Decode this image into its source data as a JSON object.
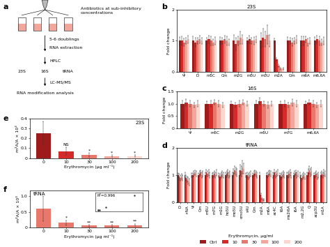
{
  "diagram": {
    "panel": "a",
    "treatment": "Antibiotics at sub-inhibitory\nconcentrations",
    "steps": [
      "5-6 doublings",
      "RNA extraction",
      "HPLC"
    ],
    "fractions": [
      "23S",
      "16S",
      "tRNA"
    ],
    "method": "LC-MS/MS",
    "result": "RNA modification analysis"
  },
  "chart_data": [
    {
      "panel": "b",
      "type": "bar",
      "title": "23S",
      "ylabel": "Fold change",
      "categories": [
        "Ψ",
        "D",
        "m5C",
        "Cm",
        "m2G",
        "m5U",
        "m3U",
        "m2A",
        "Gm",
        "m6A",
        "m6,6A"
      ],
      "ylim": [
        0,
        2
      ],
      "yticks": [
        0,
        1,
        2
      ],
      "series": [
        {
          "name": "Ctrl",
          "color": "#9e1b1b",
          "values": [
            1,
            1,
            1,
            1,
            1,
            1,
            1,
            1,
            1,
            1,
            1
          ],
          "errors": [
            0.12,
            0.15,
            0.1,
            0.12,
            0.2,
            0.1,
            0.25,
            0.08,
            0.12,
            0.15,
            0.12
          ]
        },
        {
          "name": "10",
          "color": "#d42a2a",
          "values": [
            1.0,
            0.95,
            1.05,
            1.0,
            0.9,
            1.05,
            1.1,
            0.4,
            1.0,
            1.0,
            1.05
          ],
          "errors": [
            0.15,
            0.15,
            0.12,
            0.1,
            0.2,
            0.12,
            0.3,
            0.05,
            0.1,
            0.15,
            0.12
          ]
        },
        {
          "name": "30",
          "color": "#e8776c",
          "values": [
            0.95,
            1.0,
            1.0,
            1.05,
            1.0,
            1.0,
            1.05,
            0.2,
            0.95,
            1.05,
            1.0
          ],
          "errors": [
            0.12,
            0.1,
            0.15,
            0.12,
            0.15,
            0.1,
            0.25,
            0.04,
            0.12,
            0.1,
            0.15
          ]
        },
        {
          "name": "100",
          "color": "#f2a79d",
          "values": [
            1.0,
            1.05,
            0.95,
            1.0,
            1.1,
            1.0,
            1.2,
            0.1,
            1.0,
            0.95,
            0.95
          ],
          "errors": [
            0.1,
            0.12,
            0.1,
            0.15,
            0.2,
            0.12,
            0.3,
            0.03,
            0.1,
            0.12,
            0.1
          ]
        },
        {
          "name": "200",
          "color": "#fad6cf",
          "values": [
            1.05,
            1.0,
            1.0,
            0.95,
            1.05,
            1.05,
            1.0,
            0.1,
            1.05,
            1.0,
            1.0
          ],
          "errors": [
            0.12,
            0.1,
            0.12,
            0.1,
            0.15,
            0.1,
            0.2,
            0.03,
            0.12,
            0.1,
            0.12
          ]
        }
      ]
    },
    {
      "panel": "c",
      "type": "bar",
      "title": "16S",
      "ylabel": "Fold change",
      "categories": [
        "Ψ",
        "m5C",
        "m2G",
        "m5U",
        "m7G",
        "m6,6A"
      ],
      "ylim": [
        0,
        1.5
      ],
      "yticks": [
        0,
        0.5,
        {
          "value": 1,
          "label": "1.0"
        },
        1.5
      ],
      "series": [
        {
          "name": "Ctrl",
          "color": "#9e1b1b",
          "values": [
            1,
            1,
            1,
            1,
            1,
            1
          ],
          "errors": [
            0.12,
            0.1,
            0.1,
            0.12,
            0.1,
            0.1
          ]
        },
        {
          "name": "10",
          "color": "#d42a2a",
          "values": [
            1.05,
            1.0,
            0.95,
            1.1,
            1.0,
            1.05
          ],
          "errors": [
            0.15,
            0.12,
            0.1,
            0.15,
            0.12,
            0.1
          ]
        },
        {
          "name": "30",
          "color": "#e8776c",
          "values": [
            1.0,
            1.05,
            1.0,
            1.0,
            0.95,
            1.0
          ],
          "errors": [
            0.12,
            0.1,
            0.12,
            0.1,
            0.1,
            0.12
          ]
        },
        {
          "name": "100",
          "color": "#f2a79d",
          "values": [
            0.95,
            1.0,
            1.05,
            0.95,
            1.05,
            0.95
          ],
          "errors": [
            0.1,
            0.12,
            0.1,
            0.12,
            0.15,
            0.1
          ]
        },
        {
          "name": "200",
          "color": "#fad6cf",
          "values": [
            1.0,
            0.95,
            1.0,
            1.0,
            1.0,
            1.0
          ],
          "errors": [
            0.12,
            0.1,
            0.1,
            0.1,
            0.12,
            0.12
          ]
        }
      ]
    },
    {
      "panel": "d",
      "type": "bar",
      "title": "tRNA",
      "ylabel": "Fold change",
      "categories": [
        "D",
        "r-NA",
        "Ψ",
        "Cm",
        "m5U",
        "m7G",
        "m1G",
        "ho5U",
        "mo5U",
        "cmo5U",
        "s4U",
        "Gm",
        "m2A",
        "m6A",
        "ac4C",
        "t6A",
        "ms2i6A",
        "i6A",
        "m2,2G",
        "Q",
        "acp3U",
        "m1A"
      ],
      "ylim": [
        0,
        2
      ],
      "yticks": [
        0,
        1,
        2
      ],
      "legend": "lower center",
      "legend_title": "Erythromycin, μg/ml",
      "series": [
        {
          "name": "Ctrl",
          "color": "#9e1b1b",
          "values": [
            1,
            1,
            1,
            1,
            1,
            1,
            1,
            1,
            1,
            1,
            1,
            1,
            1,
            1,
            1,
            1,
            1,
            1,
            1,
            1,
            1,
            1
          ],
          "errors": [
            0.08,
            0.1,
            0.08,
            0.08,
            0.1,
            0.08,
            0.08,
            0.1,
            0.12,
            0.15,
            0.08,
            0.08,
            0.1,
            0.08,
            0.1,
            0.08,
            0.1,
            0.08,
            0.1,
            0.12,
            0.08,
            0.1
          ]
        },
        {
          "name": "10",
          "color": "#d42a2a",
          "values": [
            0.95,
            0.9,
            1.0,
            1.05,
            1.1,
            1.0,
            0.95,
            1.05,
            1.1,
            1.2,
            1.0,
            1.05,
            0.3,
            1.0,
            1.1,
            0.95,
            1.0,
            1.05,
            0.9,
            1.1,
            1.0,
            1.05
          ],
          "errors": [
            0.1,
            0.1,
            0.08,
            0.1,
            0.12,
            0.1,
            0.1,
            0.12,
            0.15,
            0.2,
            0.1,
            0.1,
            0.05,
            0.1,
            0.12,
            0.1,
            0.1,
            0.1,
            0.1,
            0.15,
            0.1,
            0.1
          ]
        },
        {
          "name": "30",
          "color": "#e8776c",
          "values": [
            0.9,
            0.85,
            1.05,
            1.1,
            1.05,
            1.05,
            1.0,
            1.1,
            1.2,
            1.15,
            0.95,
            1.1,
            0.15,
            1.05,
            1.0,
            1.0,
            1.05,
            1.1,
            0.95,
            1.2,
            1.05,
            1.0
          ],
          "errors": [
            0.1,
            0.1,
            0.1,
            0.1,
            0.1,
            0.1,
            0.1,
            0.12,
            0.15,
            0.2,
            0.1,
            0.1,
            0.04,
            0.1,
            0.1,
            0.1,
            0.12,
            0.1,
            0.1,
            0.15,
            0.1,
            0.1
          ]
        },
        {
          "name": "100",
          "color": "#f2a79d",
          "values": [
            0.95,
            0.8,
            1.1,
            1.0,
            1.1,
            1.0,
            1.05,
            1.0,
            1.15,
            1.3,
            1.0,
            1.05,
            0.1,
            1.1,
            1.05,
            1.05,
            1.1,
            1.0,
            1.0,
            1.1,
            0.95,
            1.1
          ],
          "errors": [
            0.1,
            0.12,
            0.1,
            0.1,
            0.12,
            0.1,
            0.1,
            0.1,
            0.15,
            0.25,
            0.1,
            0.1,
            0.03,
            0.1,
            0.1,
            0.1,
            0.12,
            0.1,
            0.1,
            0.15,
            0.1,
            0.12
          ]
        },
        {
          "name": "200",
          "color": "#fad6cf",
          "values": [
            0.9,
            0.75,
            1.05,
            1.05,
            1.0,
            1.1,
            1.0,
            1.05,
            1.1,
            1.25,
            1.05,
            1.0,
            0.1,
            1.05,
            1.1,
            1.0,
            1.0,
            1.05,
            0.95,
            1.15,
            1.0,
            1.05
          ],
          "errors": [
            0.1,
            0.12,
            0.1,
            0.1,
            0.1,
            0.12,
            0.1,
            0.1,
            0.15,
            0.2,
            0.1,
            0.1,
            0.03,
            0.1,
            0.12,
            0.1,
            0.1,
            0.1,
            0.1,
            0.15,
            0.1,
            0.1
          ]
        }
      ]
    },
    {
      "panel": "e",
      "type": "bar",
      "title": "23S",
      "ylabel": "m²A/A × 10³",
      "xlabel": "Erythromycin (μg ml⁻¹)",
      "categories": [
        "0",
        "10",
        "30",
        "100",
        "200"
      ],
      "values": [
        0.25,
        0.07,
        0.03,
        0.02,
        0.02
      ],
      "errors": [
        0.12,
        0.04,
        0.02,
        0.01,
        0.01
      ],
      "colors": [
        "#9e1b1b",
        "#d42a2a",
        "#e8776c",
        "#f2a79d",
        "#fad6cf"
      ],
      "significance": [
        null,
        "NS",
        "*",
        "*",
        "*"
      ],
      "ylim": [
        0,
        0.4
      ],
      "yticks": [
        0,
        0.1,
        0.2,
        0.3,
        0.4
      ]
    },
    {
      "panel": "f",
      "type": "bar",
      "title": "tRNA",
      "ylabel": "m²A/A × 10³",
      "xlabel": "Erythromycin (μg ml⁻¹)",
      "categories": [
        "0",
        "10",
        "30",
        "100",
        "200"
      ],
      "values": [
        0.6,
        0.15,
        0.05,
        0.05,
        0.07
      ],
      "errors": [
        0.4,
        0.08,
        0.03,
        0.03,
        0.04
      ],
      "colors": [
        "#e8776c",
        "#e8776c",
        "#e8776c",
        "#e8776c",
        "#e8776c"
      ],
      "significance": [
        null,
        "*",
        "**",
        "**",
        "**"
      ],
      "ylim": [
        0,
        1.2
      ],
      "yticks": [
        0,
        0.5,
        1.0
      ],
      "inset": {
        "type": "scatter",
        "text": "R²=0.996",
        "marker": "o",
        "color": "#333333",
        "x": [
          0.25,
          0.07,
          0.03,
          0.02,
          0.02
        ],
        "y": [
          0.6,
          0.15,
          0.05,
          0.05,
          0.07
        ],
        "xlim": [
          0,
          0.3
        ],
        "ylim": [
          0,
          0.7
        ],
        "tick_labels": false
      }
    }
  ]
}
